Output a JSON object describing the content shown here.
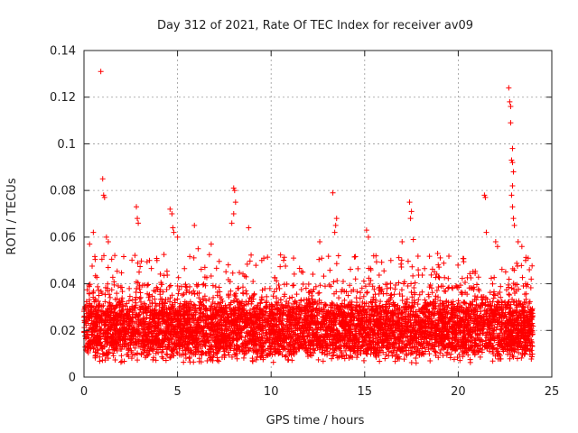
{
  "chart_data": {
    "type": "scatter",
    "title": "Day 312 of 2021, Rate Of TEC Index for receiver av09",
    "xlabel": "GPS time / hours",
    "ylabel": "ROTI / TECUs",
    "xlim": [
      0,
      25
    ],
    "ylim": [
      0,
      0.14
    ],
    "x_ticks": [
      0,
      5,
      10,
      15,
      20,
      25
    ],
    "x_tick_labels": [
      "0",
      "5",
      "10",
      "15",
      "20",
      "25"
    ],
    "y_ticks": [
      0,
      0.02,
      0.04,
      0.06,
      0.08,
      0.1,
      0.12,
      0.14
    ],
    "y_tick_labels": [
      "0",
      "0.02",
      "0.04",
      "0.06",
      "0.08",
      "0.1",
      "0.12",
      "0.14"
    ],
    "grid": true,
    "marker": "plus",
    "marker_color": "#ff0000",
    "series": [
      {
        "name": "ROTI av09",
        "note": "dense band between about 0.005 and 0.04 TECU/min over 0-24 h; notable peaks listed",
        "band_x_range": [
          0,
          24
        ],
        "band_y_range": [
          0.004,
          0.04
        ],
        "points": [
          [
            0.3,
            0.057
          ],
          [
            0.5,
            0.062
          ],
          [
            0.9,
            0.131
          ],
          [
            1.0,
            0.085
          ],
          [
            1.05,
            0.078
          ],
          [
            1.1,
            0.077
          ],
          [
            1.2,
            0.06
          ],
          [
            1.3,
            0.058
          ],
          [
            2.8,
            0.073
          ],
          [
            2.85,
            0.068
          ],
          [
            2.9,
            0.066
          ],
          [
            3.5,
            0.05
          ],
          [
            4.6,
            0.072
          ],
          [
            4.7,
            0.07
          ],
          [
            4.75,
            0.064
          ],
          [
            4.8,
            0.062
          ],
          [
            5.0,
            0.06
          ],
          [
            5.9,
            0.065
          ],
          [
            6.1,
            0.055
          ],
          [
            6.8,
            0.057
          ],
          [
            8.0,
            0.081
          ],
          [
            8.05,
            0.08
          ],
          [
            8.1,
            0.075
          ],
          [
            8.0,
            0.07
          ],
          [
            7.9,
            0.066
          ],
          [
            8.8,
            0.064
          ],
          [
            9.5,
            0.05
          ],
          [
            11.2,
            0.051
          ],
          [
            12.6,
            0.058
          ],
          [
            13.3,
            0.079
          ],
          [
            13.5,
            0.068
          ],
          [
            13.45,
            0.065
          ],
          [
            13.4,
            0.062
          ],
          [
            13.6,
            0.052
          ],
          [
            15.1,
            0.063
          ],
          [
            15.2,
            0.06
          ],
          [
            16.4,
            0.05
          ],
          [
            17.0,
            0.058
          ],
          [
            17.4,
            0.075
          ],
          [
            17.5,
            0.071
          ],
          [
            17.45,
            0.068
          ],
          [
            17.6,
            0.059
          ],
          [
            18.9,
            0.053
          ],
          [
            21.4,
            0.078
          ],
          [
            21.45,
            0.077
          ],
          [
            21.5,
            0.062
          ],
          [
            22.0,
            0.058
          ],
          [
            22.1,
            0.056
          ],
          [
            22.7,
            0.124
          ],
          [
            22.75,
            0.118
          ],
          [
            22.8,
            0.116
          ],
          [
            22.8,
            0.109
          ],
          [
            22.9,
            0.098
          ],
          [
            22.85,
            0.093
          ],
          [
            22.9,
            0.092
          ],
          [
            22.95,
            0.088
          ],
          [
            22.9,
            0.082
          ],
          [
            22.85,
            0.078
          ],
          [
            22.9,
            0.073
          ],
          [
            22.95,
            0.068
          ],
          [
            23.0,
            0.065
          ],
          [
            23.2,
            0.058
          ],
          [
            23.4,
            0.056
          ],
          [
            23.6,
            0.05
          ],
          [
            23.8,
            0.046
          ],
          [
            23.9,
            0.042
          ]
        ]
      }
    ]
  }
}
